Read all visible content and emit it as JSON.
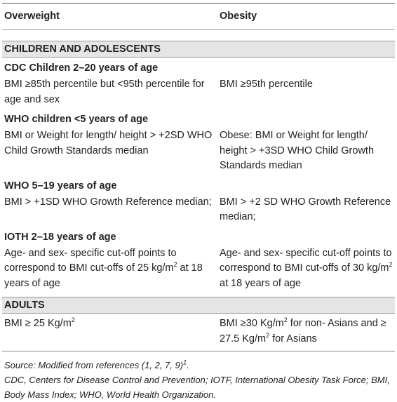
{
  "table": {
    "headers": [
      "Overweight",
      "Obesity"
    ],
    "sections": [
      {
        "title": "CHILDREN AND ADOLESCENTS",
        "groups": [
          {
            "title": "CDC Children 2–20 years of age",
            "cells": [
              [
                "BMI ≥85th percentile but <95th percentile for age and sex"
              ],
              [
                "BMI ≥95th percentile"
              ]
            ]
          },
          {
            "title": "WHO children <5 years of age",
            "cells": [
              [
                "BMI or Weight for length/ height > +2SD WHO Child Growth Standards median"
              ],
              [
                "Obese: BMI or Weight for length/ height > +3SD WHO Child Growth Standards median"
              ]
            ]
          },
          {
            "title": "WHO 5–19 years of age",
            "cells": [
              [
                "BMI > +1SD WHO Growth Reference median;"
              ],
              [
                "BMI > +2 SD WHO Growth Reference median;"
              ]
            ]
          },
          {
            "title": "IOTH 2–18 years of age",
            "cells": [
              [
                "Age- and sex- specific cut-off points to correspond to BMI cut-offs of 25 kg/m",
                {
                  "sup": "2"
                },
                " at 18 years of age"
              ],
              [
                "Age- and sex- specific cut-off points to correspond to BMI cut-offs of 30 kg/m",
                {
                  "sup": "2"
                },
                " at 18 years of age"
              ]
            ]
          }
        ]
      },
      {
        "title": "ADULTS",
        "groups": [
          {
            "cells": [
              [
                "BMI ≥ 25 Kg/m",
                {
                  "sup": "2"
                }
              ],
              [
                "BMI ≥30 Kg/m",
                {
                  "sup": "2"
                },
                " for non- Asians and ≥ 27.5 Kg/m",
                {
                  "sup": "2"
                },
                " for Asians"
              ]
            ]
          }
        ]
      }
    ]
  },
  "notes": [
    [
      "Source: Modified from references (1, 2, 7, 9)",
      {
        "sup": "1"
      },
      "."
    ],
    [
      "CDC, Centers for Disease Control and Prevention; IOTF, International Obesity Task Force; BMI, Body Mass Index; WHO, World Health Organization."
    ]
  ]
}
